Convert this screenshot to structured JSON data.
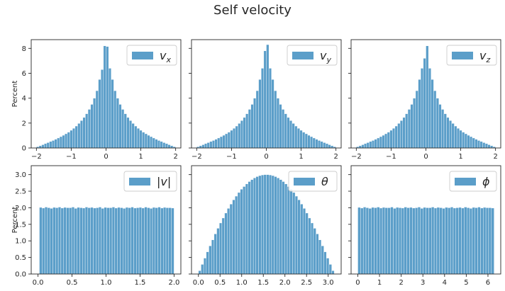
{
  "figure": {
    "title": "Self velocity"
  },
  "chart_data": [
    {
      "type": "bar",
      "legend": "vₓ",
      "legend_sub": "x",
      "legend_base": "v",
      "ylabel": "Percent",
      "xlim": [
        -2.15,
        2.15
      ],
      "ylim": [
        0,
        8.7
      ],
      "xticks": [
        -2,
        -1,
        0,
        1,
        2
      ],
      "xticklabels": [
        "−2",
        "−1",
        "0",
        "1",
        "2"
      ],
      "yticks": [
        0,
        2,
        4,
        6,
        8
      ],
      "yticklabels": [
        "0",
        "2",
        "4",
        "6",
        "8"
      ],
      "bin_range": [
        -2,
        2
      ],
      "color": "#5b9ec9",
      "values": [
        0.1,
        0.18,
        0.26,
        0.35,
        0.43,
        0.52,
        0.6,
        0.7,
        0.8,
        0.91,
        1.02,
        1.14,
        1.27,
        1.42,
        1.58,
        1.76,
        1.97,
        2.2,
        2.45,
        2.75,
        3.1,
        3.5,
        4.0,
        4.6,
        5.5,
        6.3,
        8.2,
        8.15,
        6.4,
        5.5,
        4.6,
        4.0,
        3.5,
        3.1,
        2.75,
        2.45,
        2.2,
        1.97,
        1.76,
        1.58,
        1.42,
        1.27,
        1.14,
        1.02,
        0.91,
        0.8,
        0.7,
        0.6,
        0.52,
        0.43,
        0.35,
        0.26,
        0.18,
        0.1
      ]
    },
    {
      "type": "bar",
      "legend_base": "v",
      "legend_sub": "y",
      "ylabel": "",
      "xlim": [
        -2.15,
        2.15
      ],
      "ylim": [
        0,
        8.7
      ],
      "xticks": [
        -2,
        -1,
        0,
        1,
        2
      ],
      "xticklabels": [
        "−2",
        "−1",
        "0",
        "1",
        "2"
      ],
      "yticks": [],
      "yticklabels": [],
      "bin_range": [
        -2,
        2
      ],
      "color": "#5b9ec9",
      "values": [
        0.1,
        0.18,
        0.26,
        0.35,
        0.43,
        0.52,
        0.6,
        0.7,
        0.8,
        0.91,
        1.02,
        1.14,
        1.27,
        1.42,
        1.58,
        1.76,
        1.97,
        2.2,
        2.45,
        2.75,
        3.1,
        3.5,
        4.0,
        4.6,
        5.5,
        6.4,
        7.8,
        8.3,
        6.4,
        5.5,
        4.6,
        4.0,
        3.5,
        3.1,
        2.75,
        2.45,
        2.2,
        1.97,
        1.76,
        1.58,
        1.42,
        1.27,
        1.14,
        1.02,
        0.91,
        0.8,
        0.7,
        0.6,
        0.52,
        0.43,
        0.35,
        0.26,
        0.18,
        0.1
      ]
    },
    {
      "type": "bar",
      "legend_base": "v",
      "legend_sub": "z",
      "ylabel": "",
      "xlim": [
        -2.15,
        2.15
      ],
      "ylim": [
        0,
        8.7
      ],
      "xticks": [
        -2,
        -1,
        0,
        1,
        2
      ],
      "xticklabels": [
        "−2",
        "−1",
        "0",
        "1",
        "2"
      ],
      "yticks": [],
      "yticklabels": [],
      "bin_range": [
        -2,
        2
      ],
      "color": "#5b9ec9",
      "values": [
        0.1,
        0.18,
        0.26,
        0.35,
        0.43,
        0.52,
        0.6,
        0.7,
        0.8,
        0.91,
        1.02,
        1.14,
        1.27,
        1.42,
        1.58,
        1.76,
        1.97,
        2.2,
        2.45,
        2.75,
        3.1,
        3.5,
        4.0,
        4.6,
        5.5,
        6.4,
        7.2,
        8.2,
        6.4,
        5.5,
        4.6,
        4.0,
        3.5,
        3.1,
        2.75,
        2.45,
        2.2,
        1.97,
        1.76,
        1.58,
        1.42,
        1.27,
        1.14,
        1.02,
        0.91,
        0.8,
        0.7,
        0.6,
        0.52,
        0.43,
        0.35,
        0.26,
        0.18,
        0.1
      ]
    },
    {
      "type": "bar",
      "legend": "|v|",
      "ylabel": "Percent",
      "xlim": [
        -0.1,
        2.1
      ],
      "ylim": [
        0,
        3.27
      ],
      "xticks": [
        0,
        0.5,
        1,
        1.5,
        2
      ],
      "xticklabels": [
        "0.0",
        "0.5",
        "1.0",
        "1.5",
        "2.0"
      ],
      "yticks": [
        0,
        0.5,
        1,
        1.5,
        2,
        2.5,
        3
      ],
      "yticklabels": [
        "0.0",
        "0.5",
        "1.0",
        "1.5",
        "2.0",
        "2.5",
        "3.0"
      ],
      "bin_range": [
        0.02,
        2.0
      ],
      "color": "#5b9ec9",
      "values": [
        2.01,
        1.99,
        2.02,
        2.0,
        1.98,
        2.01,
        2.0,
        2.02,
        1.99,
        2.01,
        2.0,
        2.0,
        2.02,
        1.98,
        2.01,
        2.0,
        1.99,
        2.02,
        2.0,
        2.01,
        1.99,
        2.0,
        2.02,
        1.98,
        2.01,
        2.0,
        2.0,
        2.02,
        1.99,
        2.01,
        2.0,
        1.98,
        2.01,
        2.0,
        2.02,
        1.99,
        2.0,
        2.01,
        1.99,
        2.02,
        2.0,
        1.98,
        2.01,
        2.0,
        2.02,
        1.99,
        2.01,
        2.0,
        2.0,
        1.99
      ]
    },
    {
      "type": "bar",
      "legend": "θ",
      "ylabel": "",
      "xlim": [
        -0.16,
        3.3
      ],
      "ylim": [
        0,
        3.27
      ],
      "xticks": [
        0,
        0.5,
        1,
        1.5,
        2,
        2.5,
        3
      ],
      "xticklabels": [
        "0.0",
        "0.5",
        "1.0",
        "1.5",
        "2.0",
        "2.5",
        "3.0"
      ],
      "yticks": [],
      "yticklabels": [],
      "bin_range": [
        0,
        3.14159
      ],
      "color": "#5b9ec9",
      "values": [
        0.1,
        0.29,
        0.48,
        0.67,
        0.85,
        1.03,
        1.21,
        1.38,
        1.54,
        1.69,
        1.84,
        1.98,
        2.11,
        2.24,
        2.35,
        2.46,
        2.56,
        2.64,
        2.72,
        2.79,
        2.85,
        2.9,
        2.94,
        2.97,
        2.99,
        3.0,
        3.0,
        2.99,
        2.97,
        2.94,
        2.9,
        2.85,
        2.79,
        2.72,
        2.64,
        2.56,
        2.46,
        2.35,
        2.24,
        2.11,
        1.98,
        1.84,
        1.69,
        1.54,
        1.38,
        1.21,
        1.03,
        0.85,
        0.67,
        0.48,
        0.29,
        0.1
      ]
    },
    {
      "type": "bar",
      "legend": "ϕ",
      "ylabel": "",
      "xlim": [
        -0.31,
        6.59
      ],
      "ylim": [
        0,
        3.27
      ],
      "xticks": [
        0,
        1,
        2,
        3,
        4,
        5,
        6
      ],
      "xticklabels": [
        "0",
        "1",
        "2",
        "3",
        "4",
        "5",
        "6"
      ],
      "yticks": [],
      "yticklabels": [],
      "bin_range": [
        0,
        6.28318
      ],
      "color": "#5b9ec9",
      "values": [
        2.01,
        1.99,
        2.02,
        2.0,
        1.98,
        2.01,
        2.0,
        2.02,
        1.99,
        2.01,
        2.0,
        2.0,
        2.02,
        1.98,
        2.01,
        2.0,
        1.99,
        2.02,
        2.0,
        2.01,
        1.99,
        2.0,
        2.02,
        1.98,
        2.01,
        2.0,
        2.0,
        2.02,
        1.99,
        2.01,
        2.0,
        1.98,
        2.01,
        2.0,
        2.02,
        1.99,
        2.0,
        2.01,
        1.99,
        2.02,
        2.0,
        1.98,
        2.01,
        2.0,
        2.02,
        1.99,
        2.01,
        2.0,
        2.0,
        1.99
      ]
    }
  ]
}
